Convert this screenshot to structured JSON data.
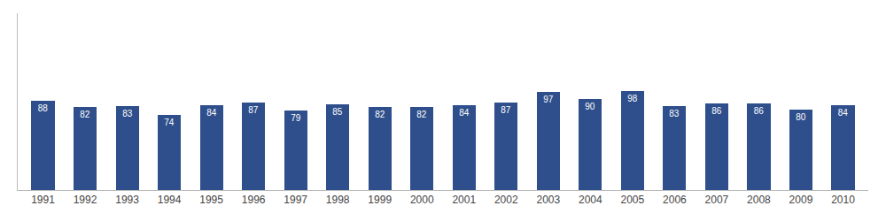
{
  "chart_data": {
    "type": "bar",
    "categories": [
      "1991",
      "1992",
      "1993",
      "1994",
      "1995",
      "1996",
      "1997",
      "1998",
      "1999",
      "2000",
      "2001",
      "2002",
      "2003",
      "2004",
      "2005",
      "2006",
      "2007",
      "2008",
      "2009",
      "2010"
    ],
    "values": [
      88,
      82,
      83,
      74,
      84,
      87,
      79,
      85,
      82,
      82,
      84,
      87,
      97,
      90,
      98,
      83,
      86,
      86,
      80,
      84
    ],
    "color": "#2e4f8c",
    "ylim": [
      0,
      175
    ],
    "grid": false,
    "data_labels": true,
    "tick_labels": "x"
  }
}
